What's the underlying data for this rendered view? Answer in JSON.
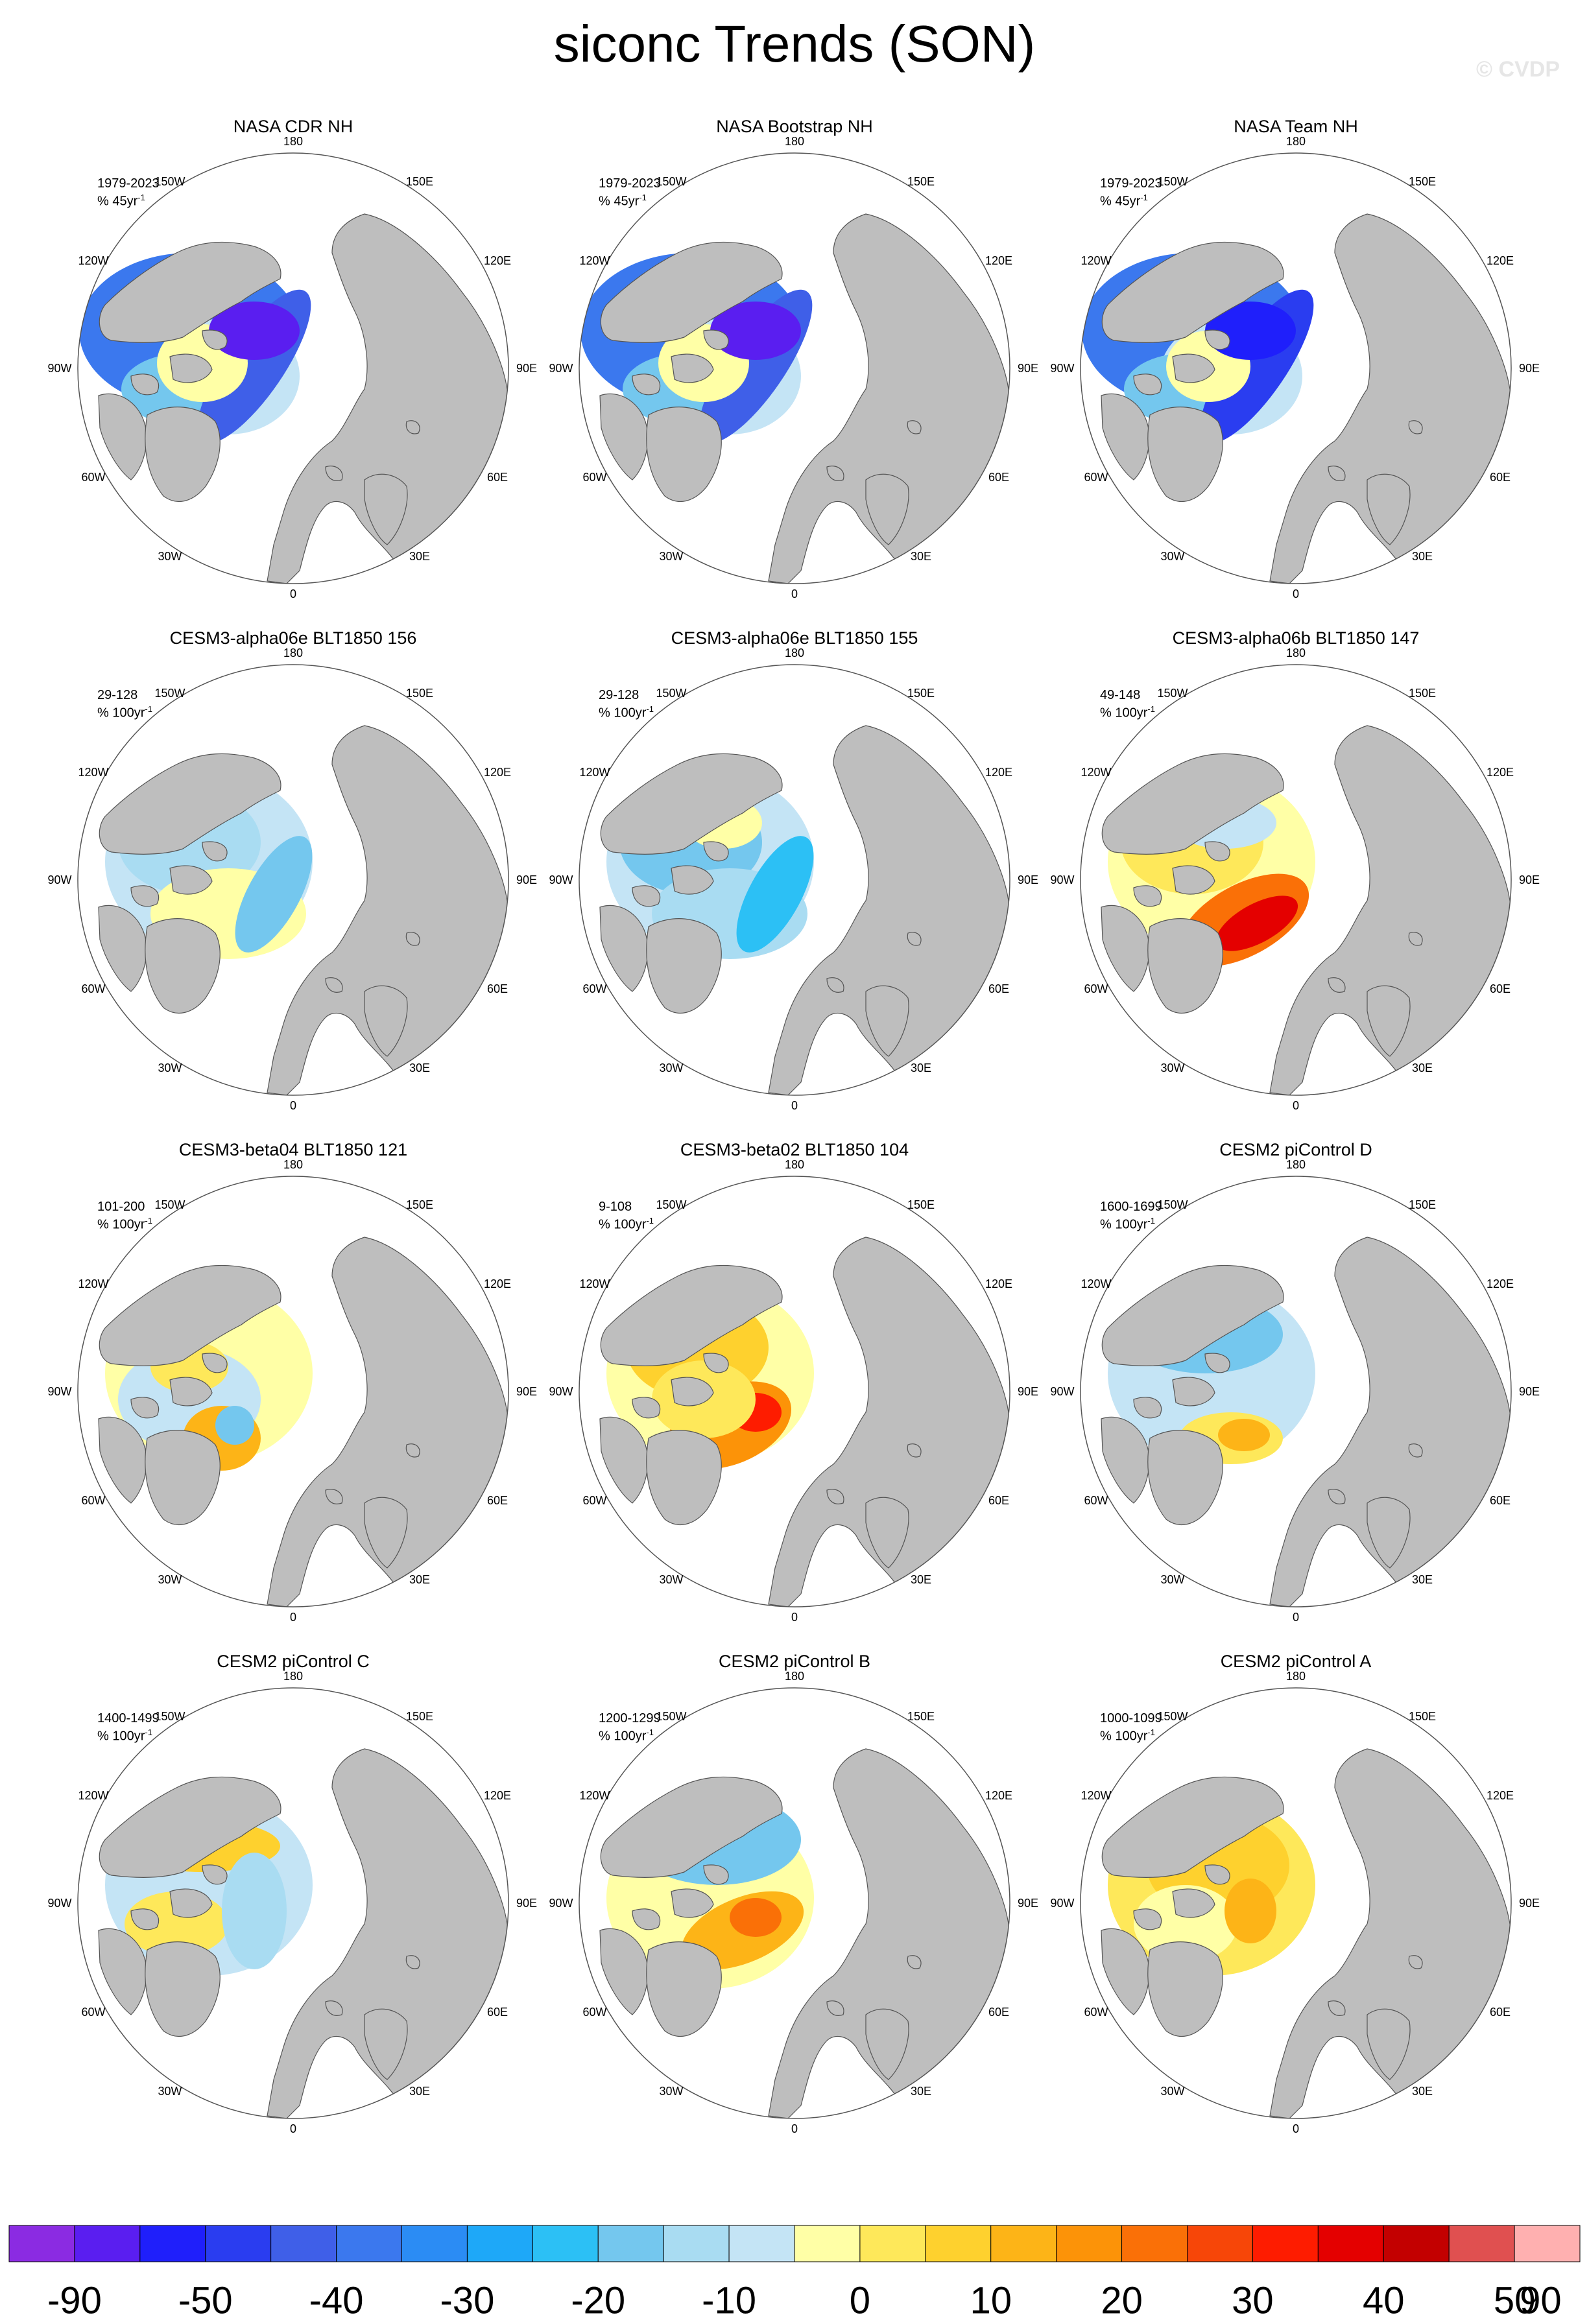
{
  "figure": {
    "title": "siconc Trends (SON)",
    "watermark": "© CVDP"
  },
  "map_labels": {
    "top": "180",
    "bottom": "0",
    "left": "90W",
    "right": "90E",
    "upper_left_1": "150W",
    "upper_left_2": "120W",
    "upper_right_1": "150E",
    "upper_right_2": "120E",
    "lower_left_1": "60W",
    "lower_left_2": "30W",
    "lower_right_1": "60E",
    "lower_right_2": "30E"
  },
  "colors": {
    "land": "#bebebe",
    "coast": "#555555",
    "ocean": "#ffffff",
    "colorbar": [
      "#8b2be2",
      "#5a1ef0",
      "#1f1ffb",
      "#2a3df0",
      "#3f5fe8",
      "#3b78ee",
      "#2b8cf4",
      "#1ea8f8",
      "#2cc0f5",
      "#74c7ee",
      "#a9dcf2",
      "#c4e4f5",
      "#ffffa6",
      "#fee85a",
      "#fed12e",
      "#fdb417",
      "#fc9308",
      "#fa7007",
      "#f74608",
      "#fe1c00",
      "#e40000",
      "#c30000",
      "#e05050",
      "#ffb0b0"
    ]
  },
  "colorbar_labels": [
    {
      "text": "-90",
      "after_box": 1
    },
    {
      "text": "-50",
      "after_box": 3
    },
    {
      "text": "-40",
      "after_box": 5
    },
    {
      "text": "-30",
      "after_box": 7
    },
    {
      "text": "-20",
      "after_box": 9
    },
    {
      "text": "-10",
      "after_box": 11
    },
    {
      "text": "0",
      "after_box": 13
    },
    {
      "text": "10",
      "after_box": 15
    },
    {
      "text": "20",
      "after_box": 17
    },
    {
      "text": "30",
      "after_box": 19
    },
    {
      "text": "40",
      "after_box": 21
    },
    {
      "text": "90",
      "after_box": 24
    }
  ],
  "colorbar_label_50": "50",
  "panels": [
    {
      "title": "NASA CDR NH",
      "period": "1979-2023",
      "units": "% 45yr",
      "exp": "-1",
      "pattern": "obs1"
    },
    {
      "title": "NASA Bootstrap NH",
      "period": "1979-2023",
      "units": "% 45yr",
      "exp": "-1",
      "pattern": "obs2"
    },
    {
      "title": "NASA Team NH",
      "period": "1979-2023",
      "units": "% 45yr",
      "exp": "-1",
      "pattern": "obs3"
    },
    {
      "title": "CESM3-alpha06e BLT1850 156",
      "period": "29-128",
      "units": "% 100yr",
      "exp": "-1",
      "pattern": "lightblue"
    },
    {
      "title": "CESM3-alpha06e BLT1850 155",
      "period": "29-128",
      "units": "% 100yr",
      "exp": "-1",
      "pattern": "blue"
    },
    {
      "title": "CESM3-alpha06b BLT1850 147",
      "period": "49-148",
      "units": "% 100yr",
      "exp": "-1",
      "pattern": "red"
    },
    {
      "title": "CESM3-beta04 BLT1850 121",
      "period": "101-200",
      "units": "% 100yr",
      "exp": "-1",
      "pattern": "mixed"
    },
    {
      "title": "CESM3-beta02 BLT1850 104",
      "period": "9-108",
      "units": "% 100yr",
      "exp": "-1",
      "pattern": "orange"
    },
    {
      "title": "CESM2 piControl D",
      "period": "1600-1699",
      "units": "% 100yr",
      "exp": "-1",
      "pattern": "blueD"
    },
    {
      "title": "CESM2 piControl C",
      "period": "1400-1499",
      "units": "% 100yr",
      "exp": "-1",
      "pattern": "mixC"
    },
    {
      "title": "CESM2 piControl B",
      "period": "1200-1299",
      "units": "% 100yr",
      "exp": "-1",
      "pattern": "mixB"
    },
    {
      "title": "CESM2 piControl A",
      "period": "1000-1099",
      "units": "% 100yr",
      "exp": "-1",
      "pattern": "yellowA"
    }
  ]
}
